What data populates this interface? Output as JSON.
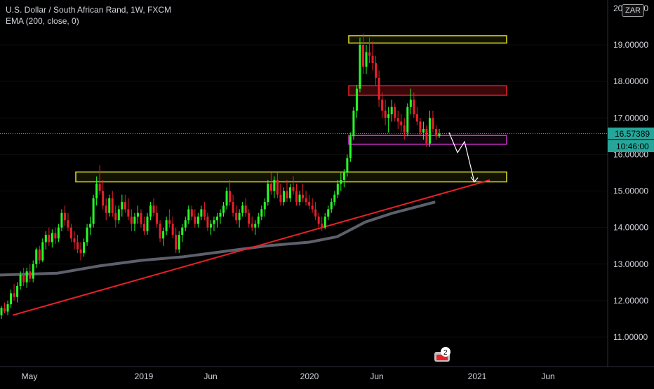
{
  "legend": {
    "symbol_line": "U.S. Dollar / South African Rand, 1W, FXCM",
    "indicator_line": "EMA (200, close, 0)"
  },
  "currency_badge": "ZAR",
  "price_axis": {
    "top_partial_label": "20.00000",
    "labels": [
      "19.00000",
      "18.00000",
      "17.00000",
      "16.00000",
      "15.00000",
      "14.00000",
      "13.00000",
      "12.00000",
      "11.00000"
    ],
    "ticks": [
      19,
      18,
      17,
      16,
      15,
      14,
      13,
      12,
      11
    ],
    "last_price": "16.57389",
    "countdown": "10:46:00",
    "last_price_color": "#26a69a",
    "countdown_color": "#26a69a"
  },
  "time_axis": {
    "labels": [
      "May",
      "2019",
      "Jun",
      "2020",
      "Jun",
      "2021",
      "Jun"
    ]
  },
  "events_badge": "2",
  "colors": {
    "background": "#000000",
    "up_candle": "#26ff26",
    "down_candle": "#e8202a",
    "ema": "#5d606b",
    "trendline": "#e8202a",
    "yellow_zone": "#e0e020",
    "red_zone": "#e8202a",
    "magenta_zone": "#d030d0",
    "projection": "#ffffff"
  },
  "chart_data": {
    "type": "candlestick",
    "symbol": "USD/ZAR",
    "timeframe": "1W",
    "x_range": [
      "2018-04",
      "2021-08"
    ],
    "y_range": [
      10.6,
      20.0
    ],
    "last_price": 16.57389,
    "ema_200": [
      [
        "2018-04",
        12.7
      ],
      [
        "2018-07",
        12.75
      ],
      [
        "2018-10",
        12.95
      ],
      [
        "2019-01",
        13.1
      ],
      [
        "2019-04",
        13.2
      ],
      [
        "2019-07",
        13.35
      ],
      [
        "2019-10",
        13.5
      ],
      [
        "2020-01",
        13.6
      ],
      [
        "2020-03",
        13.75
      ],
      [
        "2020-05",
        14.15
      ],
      [
        "2020-07",
        14.4
      ],
      [
        "2020-10",
        14.7
      ]
    ],
    "trendline": [
      [
        "2018-04",
        11.6
      ],
      [
        "2020-12",
        15.3
      ]
    ],
    "zones": [
      {
        "color": "yellow",
        "from": "2020-03",
        "to": "2021-01",
        "low": 19.05,
        "high": 19.25
      },
      {
        "color": "red",
        "from": "2020-03",
        "to": "2021-01",
        "low": 17.62,
        "high": 17.88
      },
      {
        "color": "magenta",
        "from": "2020-03",
        "to": "2021-01",
        "low": 16.28,
        "high": 16.52
      },
      {
        "color": "yellow",
        "from": "2018-08",
        "to": "2021-01",
        "low": 15.25,
        "high": 15.52
      }
    ],
    "projection": [
      [
        "2020-10",
        16.6
      ],
      [
        "2020-11",
        16.05
      ],
      [
        "2020-11",
        16.35
      ],
      [
        "2020-12",
        15.25
      ]
    ],
    "candles": [
      [
        11.6,
        11.85,
        11.5,
        11.8
      ],
      [
        11.8,
        11.95,
        11.65,
        11.7
      ],
      [
        11.7,
        12.0,
        11.6,
        11.9
      ],
      [
        11.9,
        12.3,
        11.8,
        12.2
      ],
      [
        12.2,
        12.45,
        12.0,
        12.1
      ],
      [
        12.1,
        12.5,
        11.95,
        12.4
      ],
      [
        12.4,
        12.8,
        12.3,
        12.7
      ],
      [
        12.7,
        12.9,
        12.4,
        12.5
      ],
      [
        12.5,
        12.9,
        12.35,
        12.8
      ],
      [
        12.8,
        13.0,
        12.5,
        12.6
      ],
      [
        12.6,
        13.1,
        12.5,
        13.0
      ],
      [
        13.0,
        13.45,
        12.9,
        13.4
      ],
      [
        13.4,
        13.5,
        13.0,
        13.1
      ],
      [
        13.1,
        13.7,
        13.05,
        13.6
      ],
      [
        13.6,
        13.9,
        13.4,
        13.8
      ],
      [
        13.8,
        14.0,
        13.5,
        13.6
      ],
      [
        13.6,
        13.95,
        13.45,
        13.85
      ],
      [
        13.85,
        14.0,
        13.55,
        13.7
      ],
      [
        13.7,
        14.1,
        13.6,
        14.0
      ],
      [
        14.0,
        14.5,
        13.9,
        14.4
      ],
      [
        14.4,
        14.6,
        14.05,
        14.2
      ],
      [
        14.2,
        14.4,
        13.9,
        14.0
      ],
      [
        14.0,
        14.1,
        13.6,
        13.7
      ],
      [
        13.7,
        13.9,
        13.4,
        13.6
      ],
      [
        13.6,
        13.8,
        13.3,
        13.4
      ],
      [
        13.4,
        13.6,
        13.1,
        13.3
      ],
      [
        13.3,
        13.7,
        13.2,
        13.6
      ],
      [
        13.6,
        14.1,
        13.5,
        14.0
      ],
      [
        14.0,
        14.3,
        13.8,
        14.1
      ],
      [
        14.1,
        14.9,
        14.0,
        14.8
      ],
      [
        14.8,
        15.4,
        14.6,
        15.2
      ],
      [
        15.2,
        15.7,
        14.9,
        15.0
      ],
      [
        15.0,
        15.3,
        14.5,
        14.6
      ],
      [
        14.6,
        14.8,
        14.2,
        14.4
      ],
      [
        14.4,
        14.9,
        14.3,
        14.8
      ],
      [
        14.8,
        15.0,
        14.3,
        14.4
      ],
      [
        14.4,
        14.6,
        14.0,
        14.2
      ],
      [
        14.2,
        14.6,
        14.1,
        14.5
      ],
      [
        14.5,
        14.9,
        14.3,
        14.7
      ],
      [
        14.7,
        14.9,
        14.4,
        14.5
      ],
      [
        14.5,
        14.8,
        14.2,
        14.3
      ],
      [
        14.3,
        14.5,
        13.9,
        14.1
      ],
      [
        14.1,
        14.4,
        13.9,
        14.3
      ],
      [
        14.3,
        14.6,
        14.1,
        14.4
      ],
      [
        14.4,
        14.5,
        14.0,
        14.1
      ],
      [
        14.1,
        14.3,
        13.8,
        13.9
      ],
      [
        13.9,
        14.4,
        13.8,
        14.3
      ],
      [
        14.3,
        14.7,
        14.2,
        14.6
      ],
      [
        14.6,
        14.8,
        14.3,
        14.4
      ],
      [
        14.4,
        14.6,
        14.0,
        14.1
      ],
      [
        14.1,
        14.2,
        13.6,
        13.7
      ],
      [
        13.7,
        14.0,
        13.5,
        13.9
      ],
      [
        13.9,
        14.3,
        13.8,
        14.2
      ],
      [
        14.2,
        14.5,
        14.0,
        14.1
      ],
      [
        14.1,
        14.3,
        13.7,
        13.8
      ],
      [
        13.8,
        14.0,
        13.3,
        13.4
      ],
      [
        13.4,
        13.9,
        13.3,
        13.8
      ],
      [
        13.8,
        14.1,
        13.6,
        14.0
      ],
      [
        14.0,
        14.3,
        13.9,
        14.2
      ],
      [
        14.2,
        14.6,
        14.1,
        14.5
      ],
      [
        14.5,
        14.6,
        14.2,
        14.3
      ],
      [
        14.3,
        14.5,
        14.0,
        14.1
      ],
      [
        14.1,
        14.4,
        14.0,
        14.3
      ],
      [
        14.3,
        14.6,
        14.2,
        14.5
      ],
      [
        14.5,
        14.7,
        14.2,
        14.3
      ],
      [
        14.3,
        14.4,
        13.9,
        14.0
      ],
      [
        14.0,
        14.2,
        13.8,
        14.1
      ],
      [
        14.1,
        14.3,
        13.9,
        14.2
      ],
      [
        14.2,
        14.4,
        14.0,
        14.3
      ],
      [
        14.3,
        14.5,
        14.1,
        14.4
      ],
      [
        14.4,
        14.7,
        14.3,
        14.6
      ],
      [
        14.6,
        15.1,
        14.5,
        15.0
      ],
      [
        15.0,
        15.3,
        14.6,
        14.7
      ],
      [
        14.7,
        14.9,
        14.3,
        14.4
      ],
      [
        14.4,
        14.6,
        14.1,
        14.2
      ],
      [
        14.2,
        14.5,
        14.0,
        14.4
      ],
      [
        14.4,
        14.7,
        14.3,
        14.6
      ],
      [
        14.6,
        14.8,
        14.3,
        14.4
      ],
      [
        14.4,
        14.5,
        14.0,
        14.1
      ],
      [
        14.1,
        14.3,
        13.9,
        14.0
      ],
      [
        14.0,
        14.2,
        13.8,
        14.1
      ],
      [
        14.1,
        14.4,
        14.0,
        14.3
      ],
      [
        14.3,
        14.6,
        14.2,
        14.5
      ],
      [
        14.5,
        14.8,
        14.3,
        14.7
      ],
      [
        14.7,
        15.3,
        14.6,
        15.2
      ],
      [
        15.2,
        15.5,
        14.9,
        15.0
      ],
      [
        15.0,
        15.4,
        14.8,
        15.3
      ],
      [
        15.3,
        15.5,
        14.8,
        14.9
      ],
      [
        14.9,
        15.2,
        14.6,
        14.7
      ],
      [
        14.7,
        15.1,
        14.6,
        15.0
      ],
      [
        15.0,
        15.3,
        14.7,
        14.8
      ],
      [
        14.8,
        15.2,
        14.7,
        15.1
      ],
      [
        15.1,
        15.4,
        14.9,
        15.0
      ],
      [
        15.0,
        15.2,
        14.6,
        14.7
      ],
      [
        14.7,
        15.0,
        14.6,
        14.9
      ],
      [
        14.9,
        15.2,
        14.7,
        14.8
      ],
      [
        14.8,
        15.0,
        14.6,
        14.7
      ],
      [
        14.7,
        14.9,
        14.5,
        14.6
      ],
      [
        14.6,
        14.8,
        14.4,
        14.5
      ],
      [
        14.5,
        14.7,
        14.2,
        14.3
      ],
      [
        14.3,
        14.4,
        14.0,
        14.1
      ],
      [
        14.1,
        14.3,
        13.9,
        14.0
      ],
      [
        14.0,
        14.4,
        13.95,
        14.3
      ],
      [
        14.3,
        14.6,
        14.2,
        14.5
      ],
      [
        14.5,
        14.8,
        14.4,
        14.7
      ],
      [
        14.7,
        15.0,
        14.6,
        14.9
      ],
      [
        14.9,
        15.3,
        14.8,
        15.2
      ],
      [
        15.2,
        15.5,
        15.0,
        15.3
      ],
      [
        15.3,
        15.6,
        15.1,
        15.5
      ],
      [
        15.5,
        16.0,
        15.4,
        15.9
      ],
      [
        15.9,
        16.6,
        15.8,
        16.5
      ],
      [
        16.5,
        17.3,
        16.4,
        17.2
      ],
      [
        17.2,
        17.9,
        17.0,
        17.8
      ],
      [
        17.8,
        19.2,
        17.7,
        19.0
      ],
      [
        19.0,
        19.3,
        18.2,
        18.4
      ],
      [
        18.4,
        19.0,
        18.2,
        18.8
      ],
      [
        18.8,
        19.2,
        18.5,
        18.7
      ],
      [
        18.7,
        19.1,
        18.3,
        18.5
      ],
      [
        18.5,
        18.7,
        17.9,
        18.1
      ],
      [
        18.1,
        18.3,
        17.3,
        17.5
      ],
      [
        17.5,
        17.7,
        17.0,
        17.2
      ],
      [
        17.2,
        17.5,
        16.8,
        17.0
      ],
      [
        17.0,
        17.3,
        16.6,
        17.1
      ],
      [
        17.1,
        17.5,
        16.9,
        17.3
      ],
      [
        17.3,
        17.4,
        16.9,
        17.0
      ],
      [
        17.0,
        17.2,
        16.7,
        16.9
      ],
      [
        16.9,
        17.1,
        16.6,
        16.8
      ],
      [
        16.8,
        17.0,
        16.4,
        16.6
      ],
      [
        16.6,
        17.4,
        16.5,
        17.3
      ],
      [
        17.3,
        17.8,
        17.1,
        17.5
      ],
      [
        17.5,
        17.7,
        17.0,
        17.1
      ],
      [
        17.1,
        17.3,
        16.8,
        16.9
      ],
      [
        16.9,
        17.0,
        16.5,
        16.6
      ],
      [
        16.6,
        16.9,
        16.4,
        16.7
      ],
      [
        16.7,
        16.8,
        16.2,
        16.3
      ],
      [
        16.3,
        17.2,
        16.2,
        17.0
      ],
      [
        17.0,
        17.2,
        16.6,
        16.7
      ],
      [
        16.7,
        16.8,
        16.4,
        16.5
      ],
      [
        16.5,
        16.7,
        16.45,
        16.57
      ]
    ]
  }
}
